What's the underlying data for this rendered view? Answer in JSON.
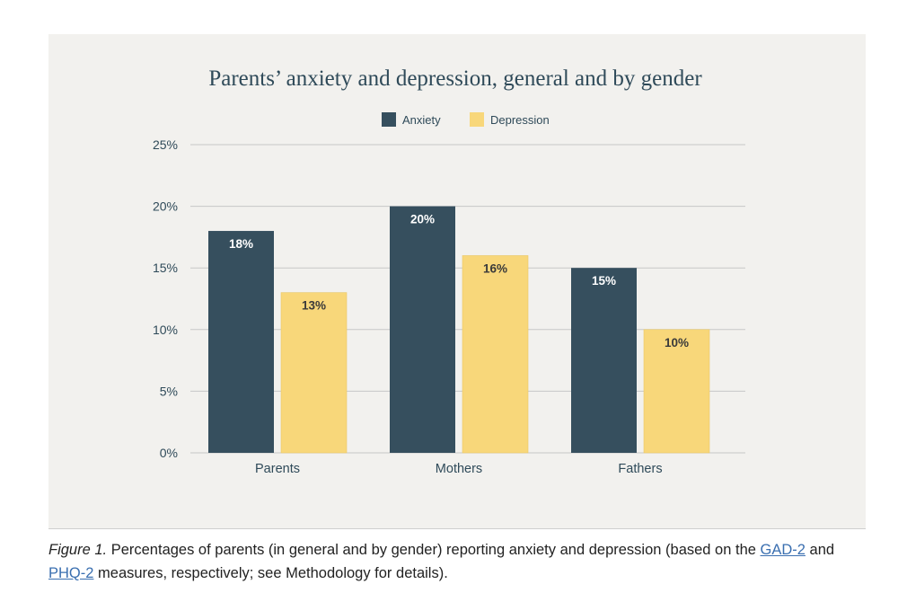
{
  "colors": {
    "anxiety": "#364f5e",
    "depression": "#f8d77a",
    "title": "#2f4a59",
    "axis_text": "#2f4a59",
    "grid": "#c7c7c7",
    "label_on_dark": "#ffffff",
    "label_on_light": "#3a3a3a"
  },
  "chart_data": {
    "type": "bar",
    "title": "Parents’ anxiety and depression, general and by gender",
    "xlabel": "",
    "ylabel": "",
    "ylim": [
      0,
      25
    ],
    "yticks": [
      0,
      5,
      10,
      15,
      20,
      25
    ],
    "ytick_labels": [
      "0%",
      "5%",
      "10%",
      "15%",
      "20%",
      "25%"
    ],
    "grid": true,
    "legend_position": "top-center",
    "categories": [
      "Parents",
      "Mothers",
      "Fathers"
    ],
    "series": [
      {
        "name": "Anxiety",
        "values": [
          18,
          20,
          15
        ],
        "labels": [
          "18%",
          "20%",
          "15%"
        ]
      },
      {
        "name": "Depression",
        "values": [
          13,
          16,
          10
        ],
        "labels": [
          "13%",
          "16%",
          "10%"
        ]
      }
    ]
  },
  "caption": {
    "figure_label": "Figure 1.",
    "text_1": " Percentages of parents (in general and by gender) reporting anxiety and depression (based on the ",
    "link_1": "GAD-2",
    "text_2": " and ",
    "link_2": "PHQ-2",
    "text_3": " measures, respectively; see Methodology for details)."
  }
}
